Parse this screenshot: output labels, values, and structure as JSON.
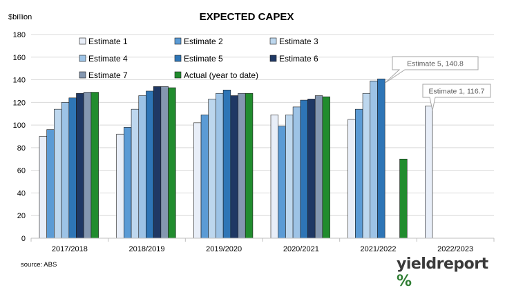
{
  "source": "source: ABS",
  "brand": {
    "name": "yieldreport",
    "symbol": "%"
  },
  "colors": {
    "Estimate 1": "#e8eef8",
    "Estimate 2": "#5b9bd5",
    "Estimate 3": "#bdd7ee",
    "Estimate 4": "#9dc3e6",
    "Estimate 5": "#2e75b6",
    "Estimate 6": "#1f3864",
    "Estimate 7": "#8497b0",
    "Actual (year to date)": "#218c2e",
    "brand_accent": "#2e7d32"
  },
  "chart_data": {
    "type": "bar",
    "title": "EXPECTED CAPEX",
    "ylabel": "$billion",
    "xlabel": "",
    "ylim": [
      0,
      180
    ],
    "yticks": [
      0,
      20,
      40,
      60,
      80,
      100,
      120,
      140,
      160,
      180
    ],
    "grid": true,
    "legend_position": "top-left",
    "categories": [
      "2017/2018",
      "2018/2019",
      "2019/2020",
      "2020/2021",
      "2021/2022",
      "2022/2023"
    ],
    "series": [
      {
        "name": "Estimate 1",
        "values": [
          90,
          92,
          102,
          109,
          105,
          116.7
        ]
      },
      {
        "name": "Estimate 2",
        "values": [
          96,
          98,
          109,
          99,
          114,
          null
        ]
      },
      {
        "name": "Estimate 3",
        "values": [
          114,
          114,
          123,
          109,
          128,
          null
        ]
      },
      {
        "name": "Estimate 4",
        "values": [
          120,
          126,
          128,
          116,
          139,
          null
        ]
      },
      {
        "name": "Estimate 5",
        "values": [
          124,
          130,
          131,
          122,
          140.8,
          null
        ]
      },
      {
        "name": "Estimate 6",
        "values": [
          128,
          134,
          126,
          123,
          null,
          null
        ]
      },
      {
        "name": "Estimate 7",
        "values": [
          129,
          134,
          128,
          126,
          null,
          null
        ]
      },
      {
        "name": "Actual (year to date)",
        "values": [
          129,
          133,
          128,
          125,
          70,
          null
        ]
      }
    ],
    "annotations": [
      {
        "text": "Estimate 5, 140.8",
        "series": "Estimate 5",
        "category": "2021/2022"
      },
      {
        "text": "Estimate 1, 116.7",
        "series": "Estimate 1",
        "category": "2022/2023"
      }
    ]
  }
}
